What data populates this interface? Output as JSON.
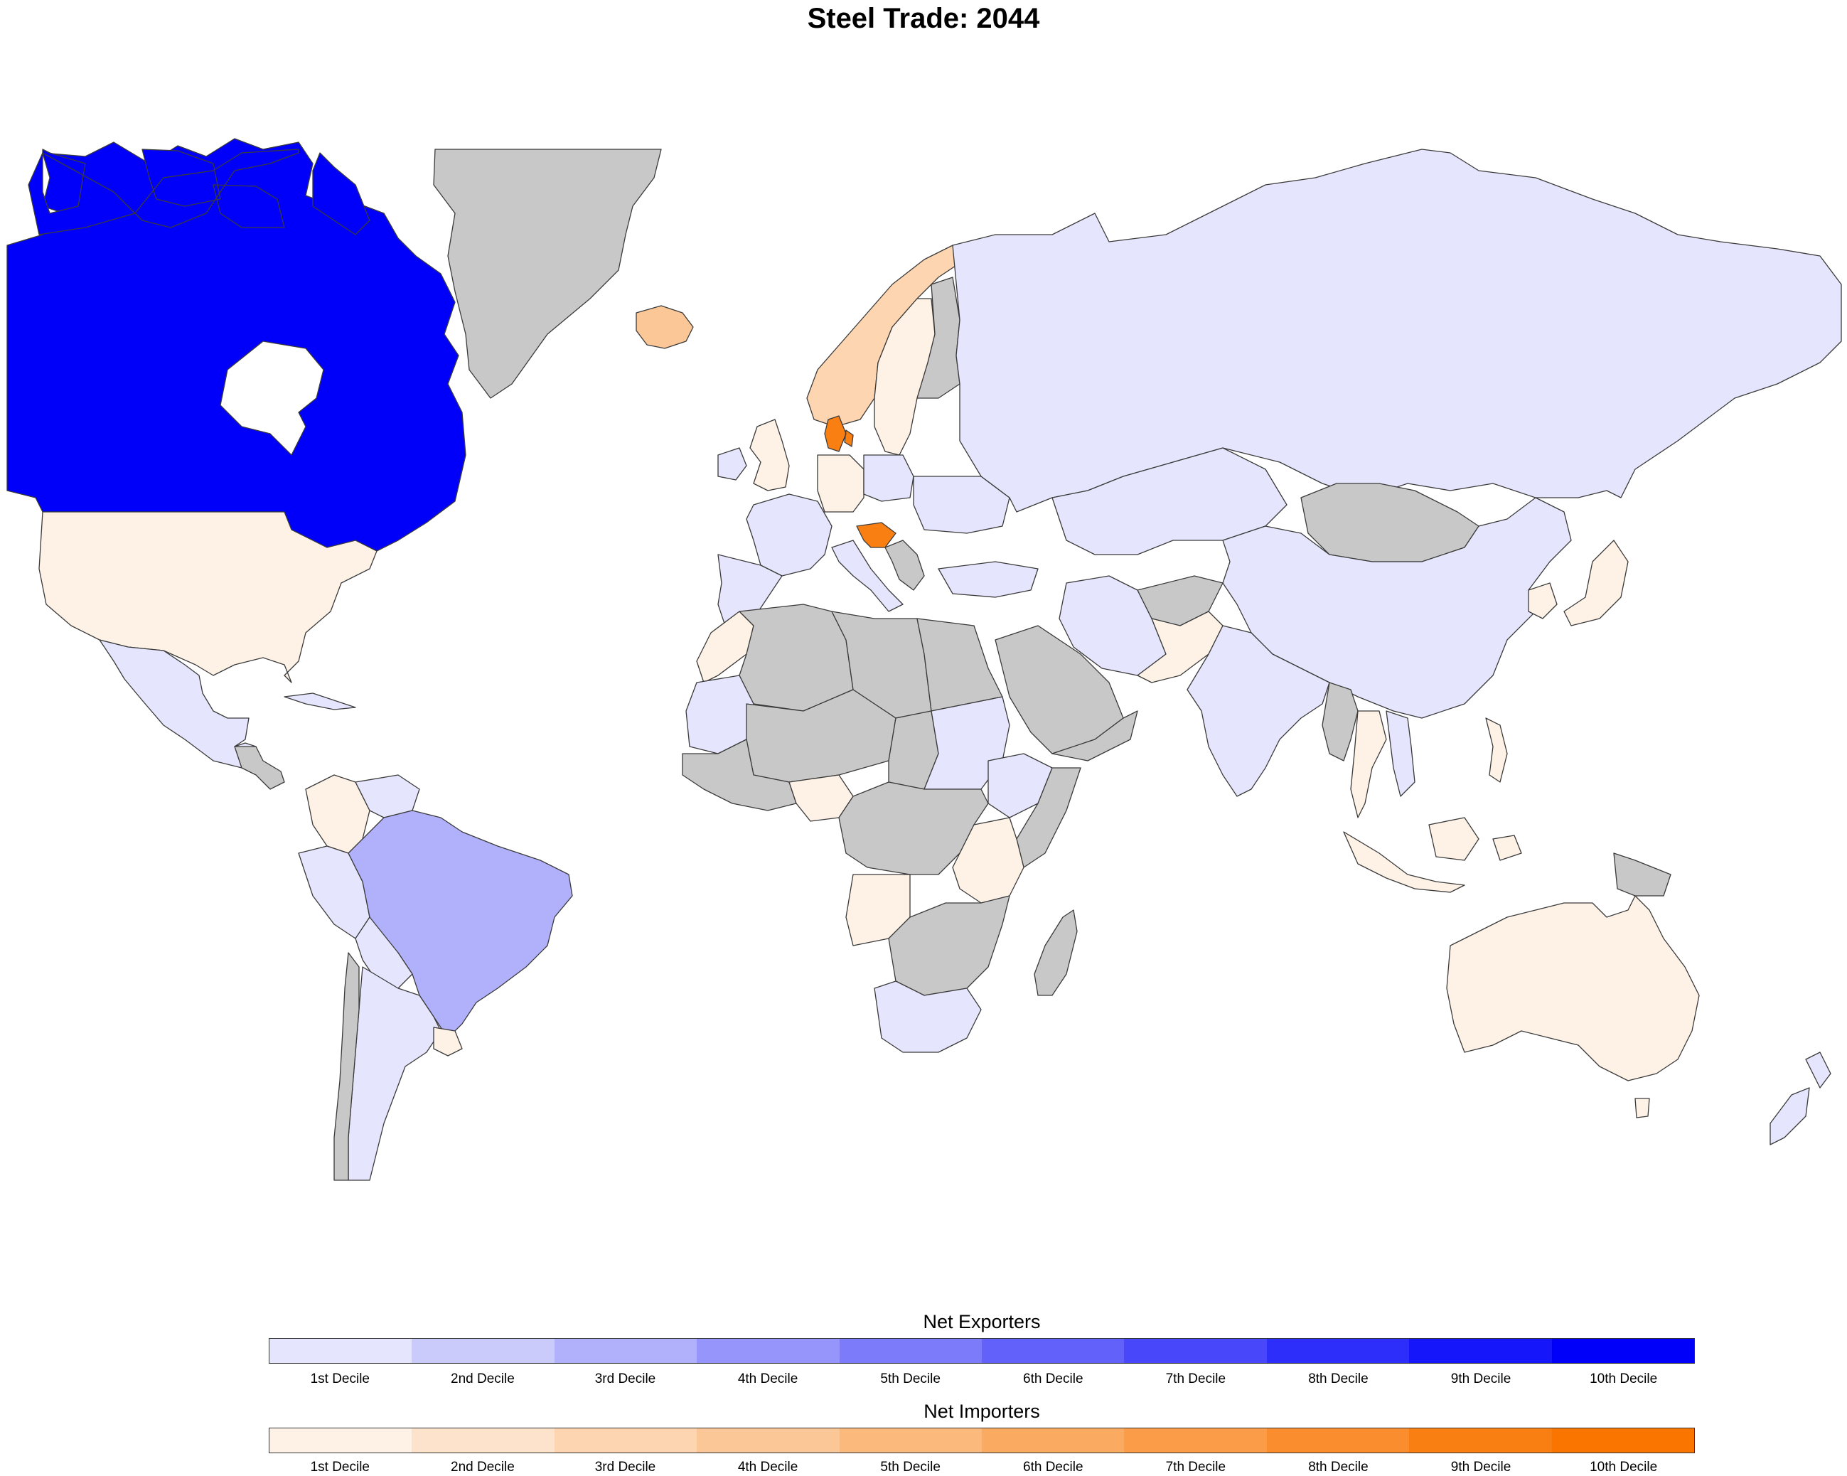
{
  "title": "Steel Trade: 2044",
  "fills": {
    "nodata": "#c8c8c8",
    "ex1": "#e5e5fd",
    "ex2": "#cbcbfb",
    "ex3": "#b1b1fb",
    "ex4": "#9595fb",
    "ex5": "#7c7cfa",
    "ex6": "#6262fa",
    "ex7": "#4848fa",
    "ex8": "#2e2efa",
    "ex9": "#1616fa",
    "ex10": "#0000fa",
    "im1": "#fef2e6",
    "im2": "#fde3cc",
    "im3": "#fdd5b1",
    "im4": "#fcc797",
    "im5": "#fcb97c",
    "im6": "#fbaa62",
    "im7": "#fb9c48",
    "im8": "#fa8d2e",
    "im9": "#fa7f13",
    "im10": "#fa7400"
  },
  "legend": {
    "exporters": {
      "title": "Net Exporters",
      "colors": [
        "#e5e5fd",
        "#cbcbfb",
        "#b1b1fb",
        "#9595fb",
        "#7c7cfa",
        "#6262fa",
        "#4848fa",
        "#2e2efa",
        "#1616fa",
        "#0000fa"
      ],
      "labels": [
        "1st Decile",
        "2nd Decile",
        "3rd Decile",
        "4th Decile",
        "5th Decile",
        "6th Decile",
        "7th Decile",
        "8th Decile",
        "9th Decile",
        "10th Decile"
      ]
    },
    "importers": {
      "title": "Net Importers",
      "colors": [
        "#fef2e6",
        "#fde3cc",
        "#fdd5b1",
        "#fcc797",
        "#fcb97c",
        "#fbaa62",
        "#fb9c48",
        "#fa8d2e",
        "#fa7f13",
        "#fa7400"
      ],
      "labels": [
        "1st Decile",
        "2nd Decile",
        "3rd Decile",
        "4th Decile",
        "5th Decile",
        "6th Decile",
        "7th Decile",
        "8th Decile",
        "9th Decile",
        "10th Decile"
      ]
    }
  },
  "countries": [
    {
      "name": "Canada",
      "class": "ex10"
    },
    {
      "name": "United States",
      "class": "im1"
    },
    {
      "name": "Mexico",
      "class": "ex1"
    },
    {
      "name": "Greenland",
      "class": "nodata"
    },
    {
      "name": "Iceland",
      "class": "im4"
    },
    {
      "name": "Norway",
      "class": "im3"
    },
    {
      "name": "Sweden",
      "class": "im1"
    },
    {
      "name": "Finland",
      "class": "nodata"
    },
    {
      "name": "Denmark",
      "class": "im9"
    },
    {
      "name": "Croatia",
      "class": "im9"
    },
    {
      "name": "Russia",
      "class": "ex1"
    },
    {
      "name": "China",
      "class": "ex1"
    },
    {
      "name": "Mongolia",
      "class": "nodata"
    },
    {
      "name": "India",
      "class": "ex1"
    },
    {
      "name": "Brazil",
      "class": "ex3"
    },
    {
      "name": "Argentina",
      "class": "ex1"
    },
    {
      "name": "Australia",
      "class": "im1"
    },
    {
      "name": "Japan",
      "class": "im1"
    },
    {
      "name": "South Africa",
      "class": "ex1"
    },
    {
      "name": "Madagascar",
      "class": "nodata"
    },
    {
      "name": "New Zealand",
      "class": "ex1"
    },
    {
      "name": "Saudi Arabia",
      "class": "nodata"
    }
  ]
}
